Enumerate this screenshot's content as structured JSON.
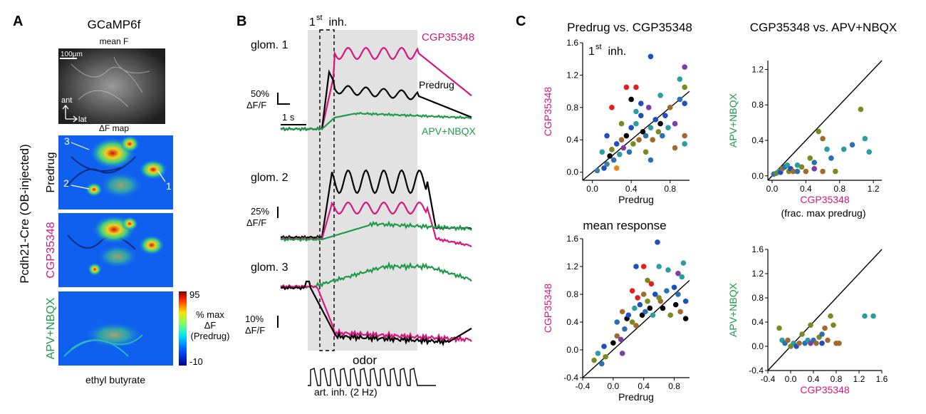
{
  "colors": {
    "magenta": "#d6167e",
    "black": "#000000",
    "green": "#1f9a4b",
    "shade": "#e2e2e2"
  },
  "panel_a": {
    "letter": "A",
    "title": "GCaMP6f",
    "ylabel": "Pcdh21-Cre (OB-injected)",
    "mean_f": {
      "label": "mean F",
      "scalebar": "100μm",
      "ant": "ant",
      "lat": "lat"
    },
    "df_map_label": "ΔF map",
    "rows": [
      {
        "label": "Predrug",
        "color": "#000000"
      },
      {
        "label": "CGP35348",
        "color": "#d6167e"
      },
      {
        "label": "APV+NBQX",
        "color": "#1f9a4b"
      }
    ],
    "glom_labels": [
      "3",
      "2",
      "1"
    ],
    "colorbar": {
      "max": "95",
      "min": "-10",
      "label_lines": [
        "% max",
        "ΔF",
        "(Predrug)"
      ]
    },
    "odor_label": "ethyl butyrate"
  },
  "panel_b": {
    "letter": "B",
    "first_inh": {
      "main": "1",
      "sup": "st",
      "rest": " inh."
    },
    "legend": [
      "CGP35348",
      "Predrug",
      "APV+NBQX"
    ],
    "traces": [
      {
        "label": "glom. 1",
        "scale": "50%",
        "scale_unit": "ΔF/F",
        "time_bar": "1 s"
      },
      {
        "label": "glom. 2",
        "scale": "25%",
        "scale_unit": "ΔF/F"
      },
      {
        "label": "glom. 3",
        "scale": "10%",
        "scale_unit": "ΔF/F"
      }
    ],
    "odor_label": "odor",
    "sniff_label": "art. inh. (2 Hz)"
  },
  "panel_c": {
    "letter": "C",
    "col_titles": [
      "Predrug vs. CGP35348",
      "CGP35348 vs. APV+NBQX"
    ],
    "row2_title": "mean response",
    "first_inh": {
      "main": "1",
      "sup": "st",
      "rest": " inh."
    },
    "frac_label": "(frac. max predrug)"
  },
  "chart_data": [
    {
      "type": "scatter",
      "title": "Predrug vs. CGP35348 (1st inh.)",
      "xlabel": "Predrug",
      "ylabel": "CGP35348",
      "xlim": [
        -0.1,
        1.0
      ],
      "ylim": [
        -0.1,
        1.6
      ],
      "xticks": [
        "0.0",
        "0.4",
        "0.8"
      ],
      "yticks": [
        "0.0",
        "0.4",
        "0.8",
        "1.2",
        "1.6"
      ],
      "unity_line": true,
      "points": [
        [
          0.12,
          0.05,
          "#1f4fbf"
        ],
        [
          0.15,
          0.1,
          "#3d7fa8"
        ],
        [
          0.18,
          0.2,
          "#000000"
        ],
        [
          0.2,
          0.28,
          "#7a8a1f"
        ],
        [
          0.22,
          0.15,
          "#2a6fb0"
        ],
        [
          0.25,
          0.35,
          "#1f4fbf"
        ],
        [
          0.28,
          0.22,
          "#2a9d9d"
        ],
        [
          0.3,
          0.4,
          "#a06b2a"
        ],
        [
          0.32,
          0.3,
          "#7a3fa0"
        ],
        [
          0.35,
          0.45,
          "#000000"
        ],
        [
          0.38,
          0.25,
          "#2a6fb0"
        ],
        [
          0.4,
          0.55,
          "#1f4fbf"
        ],
        [
          0.42,
          0.35,
          "#7a8a1f"
        ],
        [
          0.45,
          0.6,
          "#2a9d9d"
        ],
        [
          0.48,
          0.4,
          "#a06b2a"
        ],
        [
          0.5,
          0.7,
          "#1f4fbf"
        ],
        [
          0.52,
          0.5,
          "#000000"
        ],
        [
          0.55,
          0.45,
          "#2a6fb0"
        ],
        [
          0.58,
          0.8,
          "#7a3fa0"
        ],
        [
          0.6,
          0.55,
          "#2a9d9d"
        ],
        [
          0.62,
          0.4,
          "#a06b2a"
        ],
        [
          0.65,
          0.65,
          "#1f4fbf"
        ],
        [
          0.68,
          0.5,
          "#7a8a1f"
        ],
        [
          0.7,
          0.6,
          "#000000"
        ],
        [
          0.72,
          0.45,
          "#2a6fb0"
        ],
        [
          0.75,
          0.7,
          "#1f4fbf"
        ],
        [
          0.78,
          0.55,
          "#2a9d9d"
        ],
        [
          0.8,
          0.8,
          "#a06b2a"
        ],
        [
          0.85,
          0.6,
          "#7a3fa0"
        ],
        [
          0.9,
          0.9,
          "#2a6fb0"
        ],
        [
          0.95,
          0.85,
          "#1f4fbf"
        ],
        [
          0.95,
          0.45,
          "#a06b2a"
        ],
        [
          0.2,
          0.8,
          "#e02020"
        ],
        [
          0.35,
          1.05,
          "#e02020"
        ],
        [
          0.45,
          1.05,
          "#e02020"
        ],
        [
          0.6,
          1.43,
          "#1f4fbf"
        ],
        [
          0.95,
          1.3,
          "#7a3fa0"
        ],
        [
          0.9,
          1.15,
          "#2a9d9d"
        ],
        [
          0.95,
          1.05,
          "#7a8a1f"
        ],
        [
          0.7,
          0.95,
          "#2a9d9d"
        ],
        [
          0.4,
          0.9,
          "#000000"
        ],
        [
          0.3,
          0.6,
          "#7a8a1f"
        ],
        [
          0.15,
          0.45,
          "#1f4fbf"
        ],
        [
          0.1,
          0.25,
          "#2a9d9d"
        ],
        [
          0.25,
          0.05,
          "#e08a1f"
        ],
        [
          0.55,
          0.25,
          "#7a8a1f"
        ],
        [
          0.6,
          0.15,
          "#2a6fb0"
        ],
        [
          0.85,
          0.3,
          "#a06b2a"
        ],
        [
          0.95,
          0.35,
          "#2a9d9d"
        ],
        [
          0.05,
          0.02,
          "#3d7fa8"
        ],
        [
          0.5,
          0.85,
          "#1f4fbf"
        ],
        [
          0.45,
          0.75,
          "#2a9d9d"
        ]
      ]
    },
    {
      "type": "scatter",
      "title": "CGP35348 vs. APV+NBQX (1st inh.)",
      "xlabel": "CGP35348",
      "ylabel": "APV+NBQX",
      "xlim": [
        -0.05,
        1.3
      ],
      "ylim": [
        -0.05,
        1.3
      ],
      "xticks": [
        "0.0",
        "0.4",
        "0.8",
        "1.2"
      ],
      "yticks": [
        "0.0",
        "0.4",
        "0.8",
        "1.2"
      ],
      "unity_line": true,
      "points": [
        [
          0.02,
          0.02,
          "#2a6fb0"
        ],
        [
          0.05,
          0.03,
          "#7a8a1f"
        ],
        [
          0.08,
          0.05,
          "#2a9d9d"
        ],
        [
          0.1,
          0.04,
          "#1f4fbf"
        ],
        [
          0.12,
          0.08,
          "#a06b2a"
        ],
        [
          0.15,
          0.1,
          "#2a6fb0"
        ],
        [
          0.18,
          0.12,
          "#2a9d9d"
        ],
        [
          0.2,
          0.05,
          "#7a8a1f"
        ],
        [
          0.22,
          0.08,
          "#1f4fbf"
        ],
        [
          0.25,
          0.05,
          "#a06b2a"
        ],
        [
          0.3,
          0.05,
          "#2a6fb0"
        ],
        [
          0.35,
          0.1,
          "#7a8a1f"
        ],
        [
          0.4,
          0.05,
          "#a06b2a"
        ],
        [
          0.45,
          0.2,
          "#7a8a1f"
        ],
        [
          0.5,
          0.15,
          "#2a6fb0"
        ],
        [
          0.55,
          0.5,
          "#7a8a1f"
        ],
        [
          0.6,
          0.05,
          "#a06b2a"
        ],
        [
          0.65,
          0.3,
          "#2a9d9d"
        ],
        [
          0.7,
          0.2,
          "#2a6fb0"
        ],
        [
          0.75,
          0.05,
          "#7a8a1f"
        ],
        [
          0.85,
          0.3,
          "#2a9d9d"
        ],
        [
          0.95,
          0.35,
          "#2a6fb0"
        ],
        [
          1.05,
          0.75,
          "#7a8a1f"
        ],
        [
          1.1,
          0.42,
          "#2a9d9d"
        ],
        [
          1.15,
          0.27,
          "#2a9d9d"
        ],
        [
          0.6,
          0.42,
          "#a06b2a"
        ],
        [
          0.3,
          0.12,
          "#2a9d9d"
        ],
        [
          0.5,
          0.08,
          "#7a3fa0"
        ]
      ]
    },
    {
      "type": "scatter",
      "title": "Predrug vs. CGP35348 (mean response)",
      "xlabel": "Predrug",
      "ylabel": "CGP35348",
      "xlim": [
        -0.4,
        1.0
      ],
      "ylim": [
        -0.4,
        1.6
      ],
      "xticks": [
        "-0.4",
        "0.0",
        "0.4",
        "0.8"
      ],
      "yticks": [
        "-0.4",
        "0.0",
        "0.4",
        "0.8",
        "1.2",
        "1.6"
      ],
      "unity_line": true,
      "points": [
        [
          -0.25,
          -0.15,
          "#7a8a1f"
        ],
        [
          -0.2,
          -0.05,
          "#2a9d9d"
        ],
        [
          -0.15,
          -0.2,
          "#2a6fb0"
        ],
        [
          -0.12,
          0.05,
          "#1f4fbf"
        ],
        [
          -0.1,
          -0.1,
          "#7a8a1f"
        ],
        [
          0.0,
          0.1,
          "#000000"
        ],
        [
          0.05,
          0.2,
          "#a06b2a"
        ],
        [
          0.1,
          0.15,
          "#7a3fa0"
        ],
        [
          0.12,
          -0.05,
          "#7a3fa0"
        ],
        [
          0.15,
          0.3,
          "#2a6fb0"
        ],
        [
          0.18,
          0.45,
          "#000000"
        ],
        [
          0.2,
          0.5,
          "#1f4fbf"
        ],
        [
          0.25,
          0.4,
          "#7a8a1f"
        ],
        [
          0.28,
          0.6,
          "#2a9d9d"
        ],
        [
          0.3,
          0.35,
          "#a06b2a"
        ],
        [
          0.32,
          0.75,
          "#e02020"
        ],
        [
          0.35,
          0.65,
          "#1f4fbf"
        ],
        [
          0.38,
          0.5,
          "#000000"
        ],
        [
          0.4,
          0.8,
          "#a06b2a"
        ],
        [
          0.42,
          0.55,
          "#2a6fb0"
        ],
        [
          0.45,
          0.7,
          "#7a8a1f"
        ],
        [
          0.48,
          0.6,
          "#000000"
        ],
        [
          0.5,
          0.95,
          "#e02020"
        ],
        [
          0.52,
          0.5,
          "#2a9d9d"
        ],
        [
          0.55,
          0.8,
          "#1f4fbf"
        ],
        [
          0.58,
          1.55,
          "#1f4fbf"
        ],
        [
          0.6,
          1.2,
          "#2a9d9d"
        ],
        [
          0.62,
          0.7,
          "#a06b2a"
        ],
        [
          0.65,
          0.6,
          "#000000"
        ],
        [
          0.7,
          0.85,
          "#2a6fb0"
        ],
        [
          0.72,
          1.15,
          "#2a9d9d"
        ],
        [
          0.75,
          0.5,
          "#7a8a1f"
        ],
        [
          0.8,
          0.9,
          "#1f4fbf"
        ],
        [
          0.82,
          0.65,
          "#000000"
        ],
        [
          0.85,
          1.1,
          "#7a3fa0"
        ],
        [
          0.88,
          0.55,
          "#a06b2a"
        ],
        [
          0.9,
          1.05,
          "#2a9d9d"
        ],
        [
          0.92,
          1.25,
          "#2a9d9d"
        ],
        [
          0.95,
          0.7,
          "#1f4fbf"
        ],
        [
          0.95,
          0.45,
          "#000000"
        ],
        [
          0.4,
          1.2,
          "#e02020"
        ],
        [
          0.3,
          1.2,
          "#1f4fbf"
        ],
        [
          0.25,
          0.85,
          "#e02020"
        ],
        [
          0.45,
          1.0,
          "#7a8a1f"
        ],
        [
          0.05,
          0.4,
          "#2a6fb0"
        ],
        [
          0.12,
          0.55,
          "#a06b2a"
        ],
        [
          0.85,
          0.8,
          "#2a6fb0"
        ],
        [
          0.6,
          0.75,
          "#7a8a1f"
        ]
      ]
    },
    {
      "type": "scatter",
      "title": "CGP35348 vs. APV+NBQX (mean response)",
      "xlabel": "CGP35348",
      "ylabel": "APV+NBQX",
      "xlim": [
        -0.4,
        1.6
      ],
      "ylim": [
        -0.4,
        1.6
      ],
      "xticks": [
        "-0.4",
        "0.0",
        "0.4",
        "0.8",
        "1.2",
        "1.6"
      ],
      "yticks": [
        "-0.4",
        "0.0",
        "0.4",
        "0.8",
        "1.2",
        "1.6"
      ],
      "unity_line": true,
      "points": [
        [
          -0.2,
          0.3,
          "#7a8a1f"
        ],
        [
          -0.15,
          0.1,
          "#2a9d9d"
        ],
        [
          -0.1,
          0.05,
          "#2a6fb0"
        ],
        [
          -0.05,
          0.1,
          "#a06b2a"
        ],
        [
          0.0,
          0.0,
          "#7a8a1f"
        ],
        [
          0.05,
          0.05,
          "#2a9d9d"
        ],
        [
          0.1,
          0.0,
          "#1f4fbf"
        ],
        [
          0.15,
          0.05,
          "#a06b2a"
        ],
        [
          0.2,
          0.2,
          "#7a8a1f"
        ],
        [
          0.25,
          0.05,
          "#2a6fb0"
        ],
        [
          0.3,
          0.1,
          "#2a9d9d"
        ],
        [
          0.35,
          0.35,
          "#7a8a1f"
        ],
        [
          0.4,
          0.1,
          "#2a6fb0"
        ],
        [
          0.45,
          0.05,
          "#a06b2a"
        ],
        [
          0.5,
          0.15,
          "#7a8a1f"
        ],
        [
          0.55,
          0.2,
          "#2a6fb0"
        ],
        [
          0.6,
          0.3,
          "#a06b2a"
        ],
        [
          0.65,
          0.1,
          "#a06b2a"
        ],
        [
          0.7,
          0.5,
          "#7a8a1f"
        ],
        [
          0.75,
          0.35,
          "#7a8a1f"
        ],
        [
          0.8,
          0.05,
          "#a06b2a"
        ],
        [
          0.85,
          0.05,
          "#a06b2a"
        ],
        [
          1.3,
          0.5,
          "#2a9d9d"
        ],
        [
          1.45,
          0.5,
          "#2a9d9d"
        ],
        [
          0.55,
          0.05,
          "#1f4fbf"
        ],
        [
          0.35,
          0.05,
          "#7a3fa0"
        ]
      ]
    }
  ]
}
